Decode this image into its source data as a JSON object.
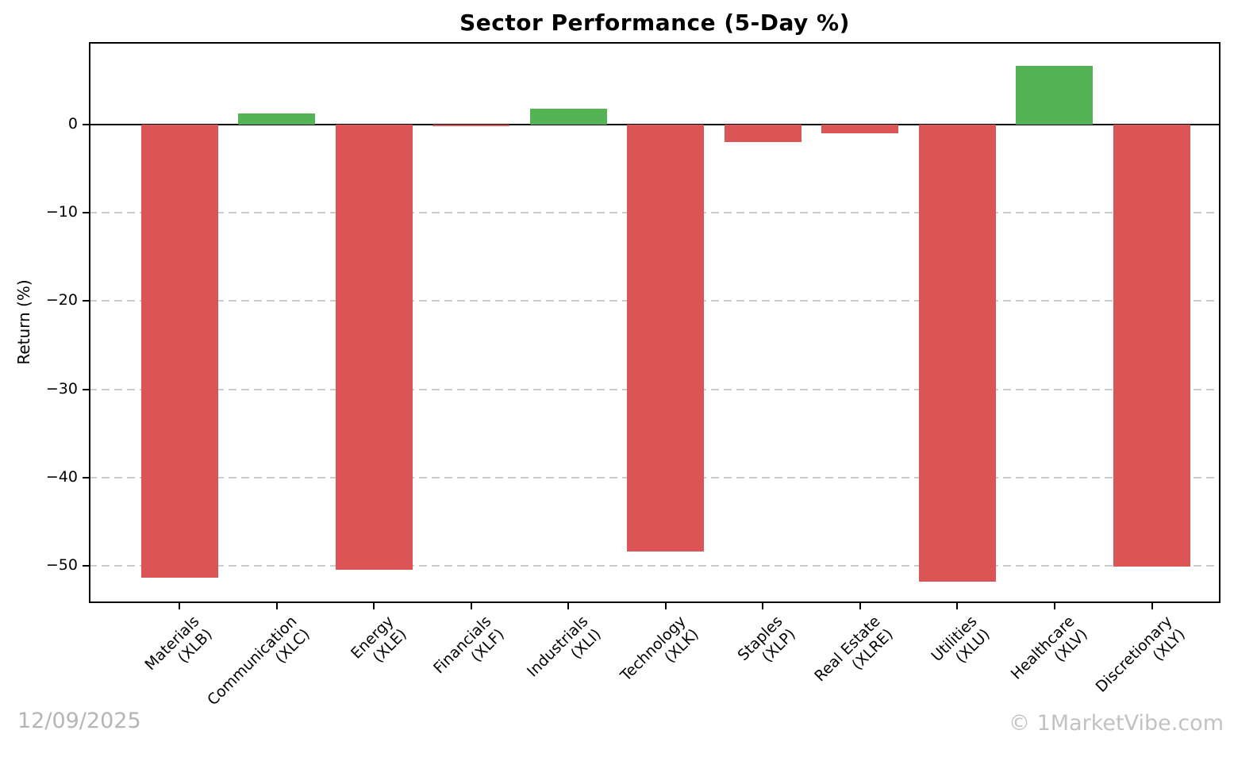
{
  "title": "Sector Performance (5-Day %)",
  "footer": {
    "date": "12/09/2025",
    "credit": "© 1MarketVibe.com"
  },
  "chart_data": {
    "type": "bar",
    "title": "Sector Performance (5-Day %)",
    "xlabel": "",
    "ylabel": "Return (%)",
    "categories": [
      {
        "name": "Materials",
        "ticker": "(XLB)"
      },
      {
        "name": "Communication",
        "ticker": "(XLC)"
      },
      {
        "name": "Energy",
        "ticker": "(XLE)"
      },
      {
        "name": "Financials",
        "ticker": "(XLF)"
      },
      {
        "name": "Industrials",
        "ticker": "(XLI)"
      },
      {
        "name": "Technology",
        "ticker": "(XLK)"
      },
      {
        "name": "Staples",
        "ticker": "(XLP)"
      },
      {
        "name": "Real Estate",
        "ticker": "(XLRE)"
      },
      {
        "name": "Utilities",
        "ticker": "(XLU)"
      },
      {
        "name": "Healthcare",
        "ticker": "(XLV)"
      },
      {
        "name": "Discretionary",
        "ticker": "(XLY)"
      }
    ],
    "values": [
      -51.3,
      1.2,
      -50.4,
      -0.2,
      1.8,
      -48.4,
      -2.0,
      -1.0,
      -51.8,
      6.6,
      -50.1
    ],
    "yticks": [
      0,
      -10,
      -20,
      -30,
      -40,
      -50
    ],
    "ylim": [
      -54.2,
      9.3
    ],
    "grid": "horizontal-dashed",
    "legend": "none",
    "colors": {
      "positive": "#54b455",
      "negative": "#dc5455",
      "gridline": "#cdcdcd",
      "axis": "#000000"
    }
  }
}
